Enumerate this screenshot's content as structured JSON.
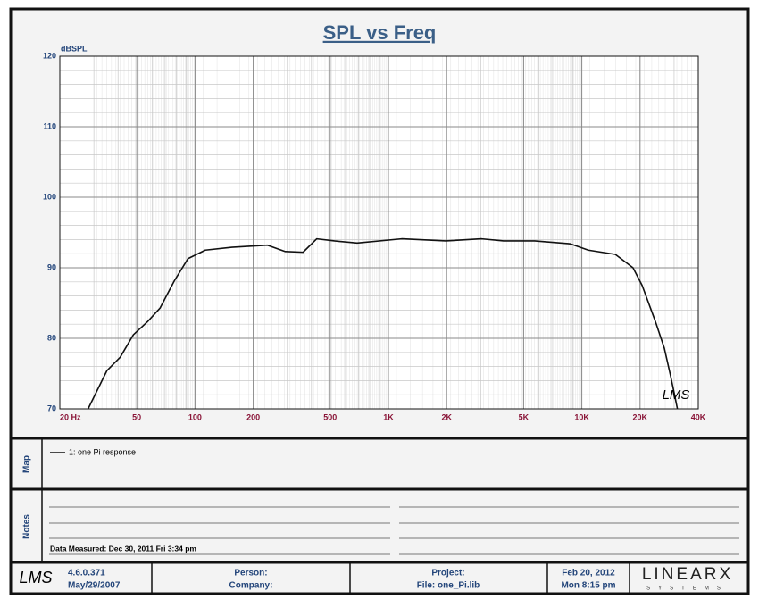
{
  "chart_data": {
    "type": "line",
    "title": "SPL vs Freq",
    "y_label": "dBSPL",
    "watermark": "LMS",
    "x": [
      28,
      35,
      41,
      48,
      57,
      66,
      78,
      92,
      113,
      155,
      237,
      293,
      362,
      426,
      526,
      689,
      1170,
      1980,
      3030,
      3940,
      5700,
      8700,
      10800,
      14900,
      18400,
      20500,
      24000,
      26700,
      28700,
      30000,
      31200
    ],
    "series": [
      {
        "name": "1: one Pi response",
        "color": "#111111",
        "values": [
          70,
          75.4,
          77.3,
          80.5,
          82.4,
          84.3,
          88.1,
          91.3,
          92.5,
          92.9,
          93.2,
          92.3,
          92.2,
          94.1,
          93.8,
          93.5,
          94.1,
          93.8,
          94.1,
          93.8,
          93.8,
          93.4,
          92.5,
          91.9,
          90,
          87.5,
          82.4,
          78.6,
          74.8,
          72.3,
          70
        ]
      }
    ],
    "xlim": [
      20,
      40000
    ],
    "log_x": true,
    "xticks": [
      {
        "value": 20,
        "label": "20  Hz"
      },
      50,
      100,
      200,
      500,
      {
        "value": 1000,
        "label": "1K"
      },
      {
        "value": 2000,
        "label": "2K"
      },
      {
        "value": 5000,
        "label": "5K"
      },
      {
        "value": 10000,
        "label": "10K"
      },
      {
        "value": 20000,
        "label": "20K"
      },
      {
        "value": 40000,
        "label": "40K"
      }
    ],
    "ylim": [
      70,
      120
    ],
    "yticks": [
      70,
      80,
      90,
      100,
      110,
      120
    ],
    "grid": true
  },
  "map": {
    "label": "Map"
  },
  "notes": {
    "label": "Notes",
    "measured": "Data Measured: Dec 30, 2011  Fri  3:34 pm"
  },
  "footer": {
    "logo": "LMS",
    "version": "4.6.0.371",
    "version_date": "May/29/2007",
    "person": "Person:",
    "company": "Company:",
    "project": "Project:",
    "file": "File: one_Pi.lib",
    "date": "Feb 20, 2012",
    "time": "Mon  8:15 pm",
    "brand": "LINEARX",
    "brand_sub": "SYSTEMS"
  }
}
